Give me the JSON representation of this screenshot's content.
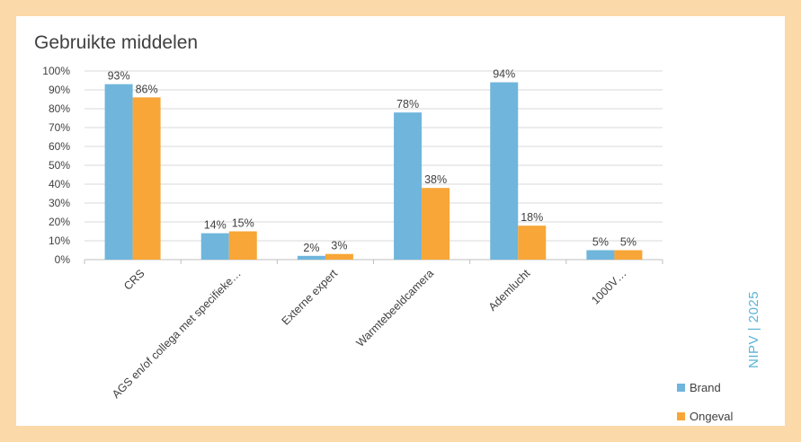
{
  "title": "Gebruikte middelen",
  "watermark": "NIPV | 2025",
  "colors": {
    "brand": "#6fb5dc",
    "ongeval": "#f7a637",
    "frame": "#fcd9a8"
  },
  "chart_data": {
    "type": "bar",
    "title": "Gebruikte middelen",
    "categories": [
      "CRS",
      "AGS en/of collega met specifieke…",
      "Externe expert",
      "Warmtebeeldcamera",
      "Ademlucht",
      "1000V…"
    ],
    "series": [
      {
        "name": "Brand",
        "values": [
          93,
          14,
          2,
          78,
          94,
          5
        ],
        "labels": [
          "93%",
          "14%",
          "2%",
          "78%",
          "94%",
          "5%"
        ]
      },
      {
        "name": "Ongeval",
        "values": [
          86,
          15,
          3,
          38,
          18,
          5
        ],
        "labels": [
          "86%",
          "15%",
          "3%",
          "38%",
          "18%",
          "5%"
        ]
      }
    ],
    "ylim": [
      0,
      100
    ],
    "yticks": [
      "0%",
      "10%",
      "20%",
      "30%",
      "40%",
      "50%",
      "60%",
      "70%",
      "80%",
      "90%",
      "100%"
    ],
    "grid": true,
    "legend": "bottom-right"
  }
}
